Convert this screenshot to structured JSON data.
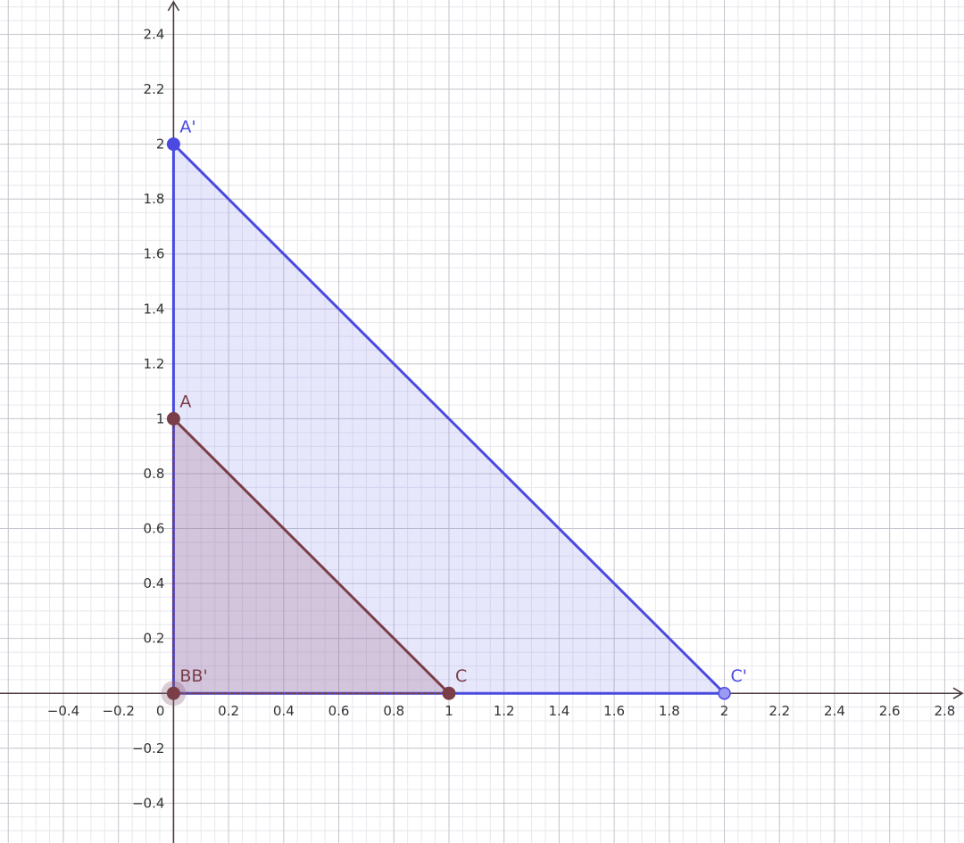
{
  "view": {
    "xmin": -0.63,
    "xmax": 2.87,
    "ymin": -0.545,
    "ymax": 2.525
  },
  "axes": {
    "x_ticks": [
      "-0.4",
      "-0.2",
      "0.2",
      "0.4",
      "0.6",
      "0.8",
      "1",
      "1.2",
      "1.4",
      "1.6",
      "1.8",
      "2",
      "2.2",
      "2.4",
      "2.6",
      "2.8"
    ],
    "y_ticks": [
      "-0.4",
      "-0.2",
      "0.2",
      "0.4",
      "0.6",
      "0.8",
      "1",
      "1.2",
      "1.4",
      "1.6",
      "1.8",
      "2",
      "2.2",
      "2.4"
    ],
    "origin_label": "0"
  },
  "colors": {
    "original": "#7a3e48",
    "original_fill": "rgba(160, 110, 135, 0.28)",
    "image": "#4a4ae0",
    "image_fill": "rgba(120, 120, 240, 0.18)",
    "major_grid": "#c4c4cc",
    "minor_grid": "#e8e8ee"
  },
  "triangles": {
    "original": {
      "points": [
        [
          0,
          1
        ],
        [
          0,
          0
        ],
        [
          1,
          0
        ]
      ]
    },
    "image": {
      "points": [
        [
          0,
          2
        ],
        [
          0,
          0
        ],
        [
          2,
          0
        ]
      ]
    }
  },
  "points": [
    {
      "id": "A",
      "label": "A",
      "x": 0,
      "y": 1,
      "set": "original"
    },
    {
      "id": "B",
      "label": "BB'",
      "x": 0,
      "y": 0,
      "set": "original"
    },
    {
      "id": "C",
      "label": "C",
      "x": 1,
      "y": 0,
      "set": "original"
    },
    {
      "id": "A'",
      "label": "A'",
      "x": 0,
      "y": 2,
      "set": "image"
    },
    {
      "id": "C'",
      "label": "C'",
      "x": 2,
      "y": 0,
      "set": "image"
    }
  ]
}
